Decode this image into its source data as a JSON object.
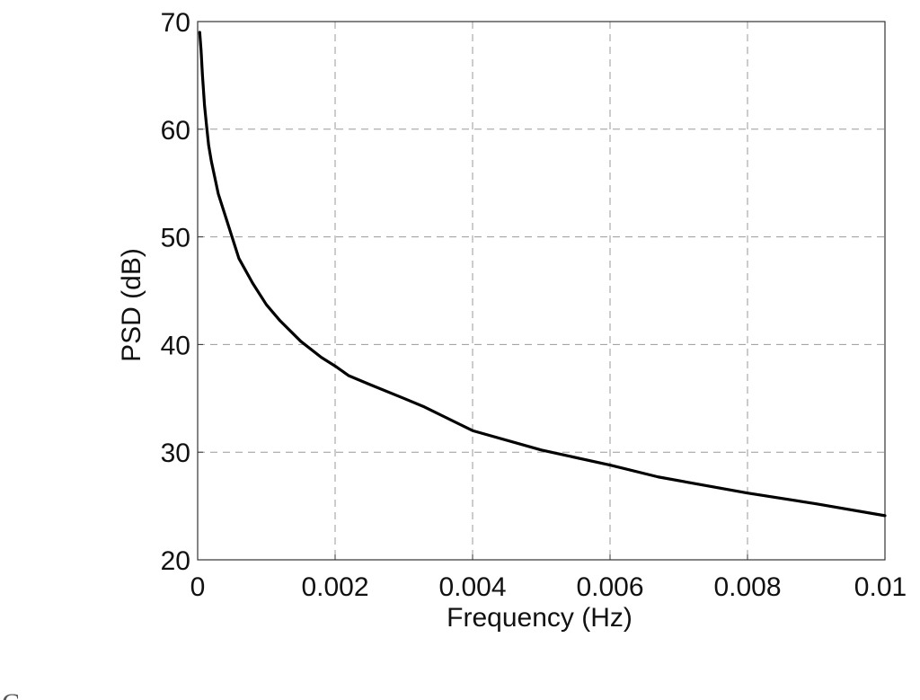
{
  "chart_data": {
    "type": "line",
    "title": "",
    "xlabel": "Frequency (Hz)",
    "ylabel": "PSD (dB)",
    "xlim": [
      0,
      0.01
    ],
    "ylim": [
      20,
      70
    ],
    "x_ticks": [
      "0",
      "0.002",
      "0.004",
      "0.006",
      "0.008",
      "0.01"
    ],
    "y_ticks": [
      "20",
      "30",
      "40",
      "50",
      "60",
      "70"
    ],
    "grid": true,
    "legend": "none",
    "series_color": "#000000",
    "series": [
      {
        "x": [
          3e-05,
          5e-05,
          7e-05,
          0.0001,
          0.00013,
          0.00016,
          0.0002,
          0.00025,
          0.0003,
          0.0004,
          0.0005,
          0.0006,
          0.0008,
          0.001,
          0.0012,
          0.0015,
          0.0018,
          0.002,
          0.0022,
          0.0025,
          0.003,
          0.0033,
          0.004,
          0.005,
          0.006,
          0.0067,
          0.008,
          0.009,
          0.01
        ],
        "y": [
          69.0,
          67.3,
          65.0,
          62.2,
          60.3,
          58.5,
          57.0,
          55.5,
          54.0,
          52.0,
          50.0,
          48.0,
          45.7,
          43.7,
          42.2,
          40.3,
          38.8,
          38.0,
          37.1,
          36.3,
          35.0,
          34.2,
          32.0,
          30.2,
          28.8,
          27.7,
          26.2,
          25.2,
          24.1
        ]
      }
    ]
  },
  "page": {
    "bottom_fragment": "C"
  }
}
